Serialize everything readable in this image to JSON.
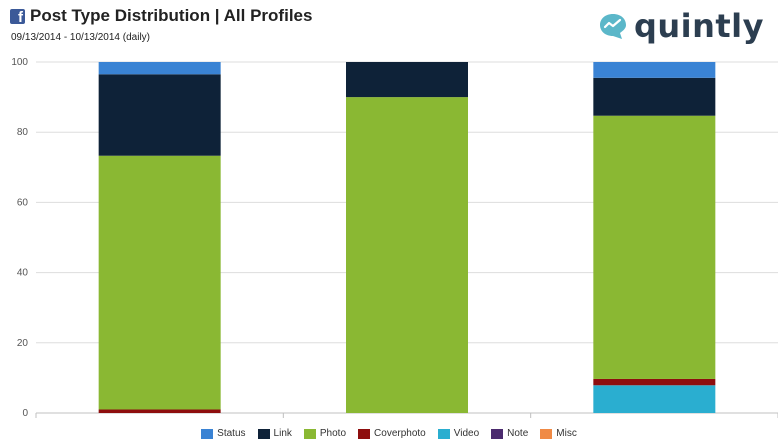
{
  "header": {
    "title": "Post Type Distribution | All Profiles",
    "date_range": "09/13/2014 - 10/13/2014 (daily)",
    "logo_text": "quintly",
    "platform_icon": "facebook-icon"
  },
  "chart_data": {
    "type": "bar",
    "stacked": true,
    "categories": [
      "",
      "",
      ""
    ],
    "ylim": [
      0,
      100
    ],
    "yticks": [
      0,
      20,
      40,
      60,
      80,
      100
    ],
    "grid": true,
    "legend_position": "bottom",
    "series": [
      {
        "name": "Status",
        "color": "#3a83d4",
        "values": [
          3.5,
          0,
          4.5
        ]
      },
      {
        "name": "Link",
        "color": "#0e2238",
        "values": [
          23.2,
          10,
          10.8
        ]
      },
      {
        "name": "Photo",
        "color": "#8ab833",
        "values": [
          72.3,
          90,
          75
        ]
      },
      {
        "name": "Coverphoto",
        "color": "#8e0e0e",
        "values": [
          1,
          0,
          1.8
        ]
      },
      {
        "name": "Video",
        "color": "#2aaed0",
        "values": [
          0,
          0,
          7.9
        ]
      },
      {
        "name": "Note",
        "color": "#4b2a6e",
        "values": [
          0,
          0,
          0
        ]
      },
      {
        "name": "Misc",
        "color": "#f08a45",
        "values": [
          0,
          0,
          0
        ]
      }
    ],
    "stack_order": [
      "Video",
      "Coverphoto",
      "Photo",
      "Link",
      "Status",
      "Note",
      "Misc"
    ]
  }
}
